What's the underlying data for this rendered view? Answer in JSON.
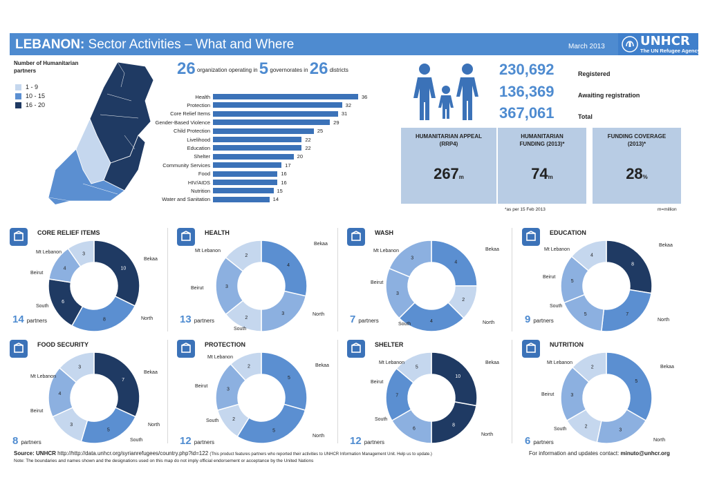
{
  "header": {
    "title_bold": "LEBANON:",
    "title_rest": " Sector Activities – What and Where",
    "date": "March 2013",
    "logo_word": "UNHCR",
    "logo_sub": "The UN Refugee Agency"
  },
  "legend": {
    "title": "Number of Humanitarian partners",
    "items": [
      {
        "label": "1 - 9",
        "color": "#c5d7ee"
      },
      {
        "label": "10 - 15",
        "color": "#5b8fd1"
      },
      {
        "label": "16 - 20",
        "color": "#1f3a63"
      }
    ]
  },
  "summary": {
    "orgs": "26",
    "orgs_text": "organization operating in",
    "gov": "5",
    "gov_text": "governorates in",
    "districts": "26",
    "districts_text": "districts"
  },
  "sectors_chart": {
    "type": "bar",
    "categories": [
      "Health",
      "Protection",
      "Core Relief Items",
      "Gender-Based Violence",
      "Child Protection",
      "Livelihood",
      "Education",
      "Shelter",
      "Community Services",
      "Food",
      "HIV/AIDS",
      "Nutrition",
      "Water and Sanitation"
    ],
    "values": [
      36,
      32,
      31,
      29,
      25,
      22,
      22,
      20,
      17,
      16,
      16,
      15,
      14
    ]
  },
  "refugees": [
    {
      "value": "230,692",
      "label": "Registered"
    },
    {
      "value": "136,369",
      "label": "Awaiting registration"
    },
    {
      "value": "367,061",
      "label": "Total"
    }
  ],
  "funding": [
    {
      "title": "HUMANITARIAN APPEAL (RRP4)",
      "value": "267",
      "unit": "m"
    },
    {
      "title": "HUMANITARIAN FUNDING (2013)*",
      "value": "74",
      "unit": "m"
    },
    {
      "title": "FUNDING COVERAGE (2013)*",
      "value": "28",
      "unit": "%"
    }
  ],
  "funding_note": "*as per 15 Feb 2013",
  "funding_unit_note": "m=million",
  "partners_word": "partners",
  "chart_data": [
    {
      "type": "pie",
      "title": "CORE RELIEF ITEMS",
      "partners": "14",
      "categories": [
        "Bekaa",
        "North",
        "South",
        "Beirut",
        "Mt Lebanon"
      ],
      "values": [
        10,
        8,
        6,
        4,
        3
      ],
      "colors": [
        "#1f3a63",
        "#5b8fd1",
        "#1f3a63",
        "#8cb0e0",
        "#c5d7ee"
      ]
    },
    {
      "type": "pie",
      "title": "HEALTH",
      "partners": "13",
      "categories": [
        "Bekaa",
        "North",
        "South",
        "Beirut",
        "Mt Lebanon"
      ],
      "values": [
        4,
        3,
        2,
        3,
        2
      ],
      "colors": [
        "#5b8fd1",
        "#8cb0e0",
        "#c5d7ee",
        "#8cb0e0",
        "#c5d7ee"
      ]
    },
    {
      "type": "pie",
      "title": "WASH",
      "partners": "7",
      "categories": [
        "Bekaa",
        "North",
        "South",
        "Beirut",
        "Mt Lebanon"
      ],
      "values": [
        4,
        2,
        4,
        3,
        3
      ],
      "colors": [
        "#5b8fd1",
        "#c5d7ee",
        "#5b8fd1",
        "#8cb0e0",
        "#8cb0e0"
      ]
    },
    {
      "type": "pie",
      "title": "EDUCATION",
      "partners": "9",
      "categories": [
        "Bekaa",
        "North",
        "South",
        "Beirut",
        "Mt Lebanon"
      ],
      "values": [
        8,
        7,
        5,
        5,
        4
      ],
      "colors": [
        "#1f3a63",
        "#5b8fd1",
        "#8cb0e0",
        "#8cb0e0",
        "#c5d7ee"
      ]
    },
    {
      "type": "pie",
      "title": "FOOD SECURITY",
      "partners": "8",
      "categories": [
        "Bekaa",
        "North",
        "South",
        "Beirut",
        "Mt Lebanon"
      ],
      "values": [
        7,
        5,
        3,
        4,
        3
      ],
      "colors": [
        "#1f3a63",
        "#5b8fd1",
        "#c5d7ee",
        "#8cb0e0",
        "#c5d7ee"
      ]
    },
    {
      "type": "pie",
      "title": "PROTECTION",
      "partners": "12",
      "categories": [
        "Bekaa",
        "North",
        "South",
        "Beirut",
        "Mt Lebanon"
      ],
      "values": [
        5,
        5,
        2,
        3,
        2
      ],
      "colors": [
        "#5b8fd1",
        "#5b8fd1",
        "#c5d7ee",
        "#8cb0e0",
        "#c5d7ee"
      ]
    },
    {
      "type": "pie",
      "title": "SHELTER",
      "partners": "12",
      "categories": [
        "Bekaa",
        "North",
        "South",
        "Beirut",
        "Mt Lebanon"
      ],
      "values": [
        10,
        8,
        6,
        7,
        5
      ],
      "colors": [
        "#1f3a63",
        "#1f3a63",
        "#8cb0e0",
        "#5b8fd1",
        "#c5d7ee"
      ]
    },
    {
      "type": "pie",
      "title": "NUTRITION",
      "partners": "6",
      "categories": [
        "Bekaa",
        "North",
        "South",
        "Beirut",
        "Mt Lebanon"
      ],
      "values": [
        5,
        3,
        2,
        3,
        2
      ],
      "colors": [
        "#5b8fd1",
        "#8cb0e0",
        "#c5d7ee",
        "#8cb0e0",
        "#c5d7ee"
      ]
    }
  ],
  "footer": {
    "source_label": "Source:",
    "source_org": "UNHCR",
    "source_url": "http://http://data.unhcr.org/syrianrefugees/country.php?id=122",
    "source_small": "(This product features partners who reported their activities to UNHCR Information Management Unit. Help us to update.)",
    "note": "Note: The boundaries and names shown and the designations used on this map do not imply official endorsement or acceptance by the United Nations",
    "contact_text": "For information and updates contact:",
    "contact_email": "minuto@unhcr.org"
  }
}
